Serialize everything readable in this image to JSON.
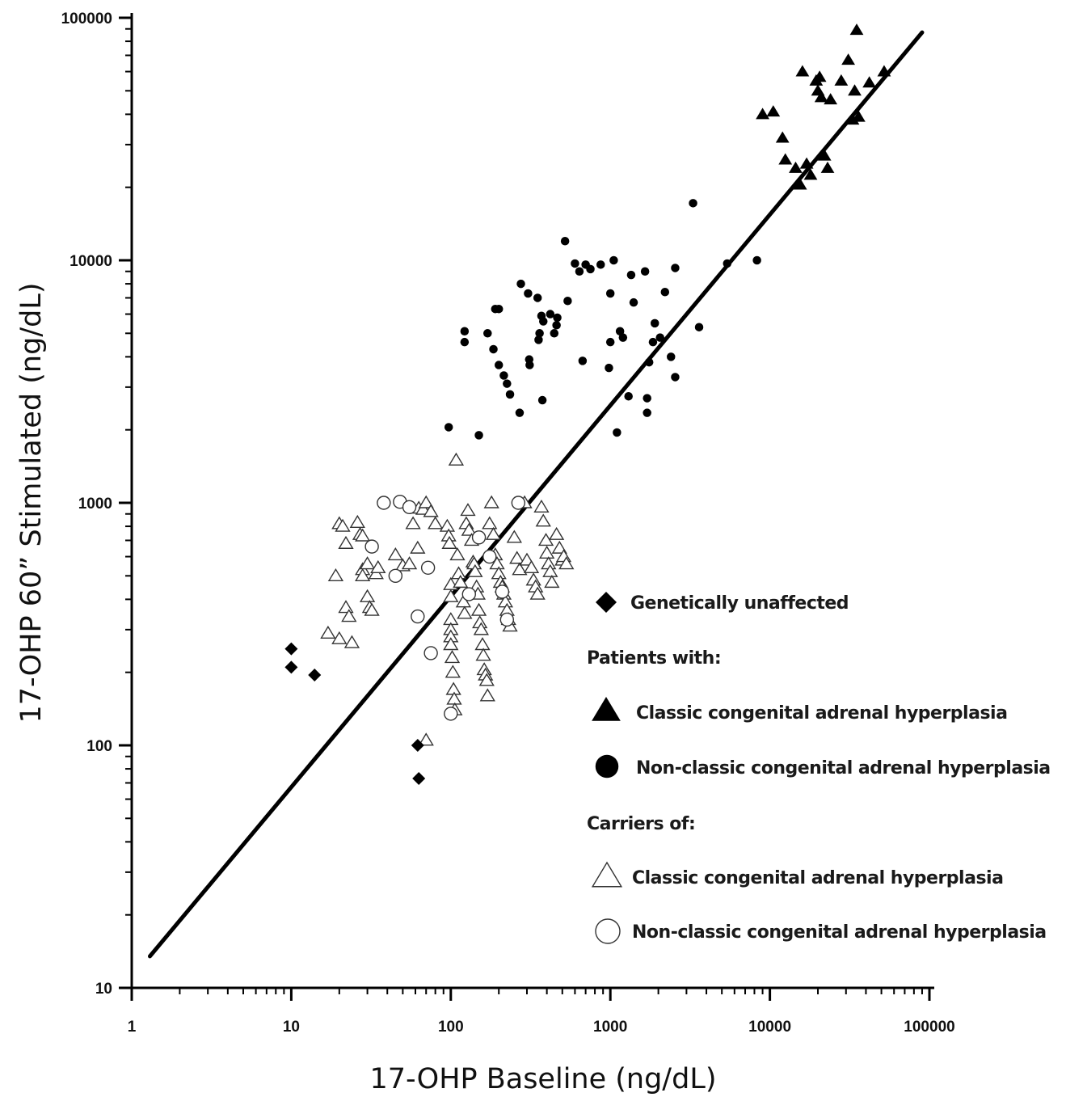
{
  "chart_data": {
    "type": "scatter",
    "xlabel": "17-OHP Baseline (ng/dL)",
    "ylabel": "17-OHP 60” Stimulated (ng/dL)",
    "xscale": "log",
    "yscale": "log",
    "xlim": [
      1,
      100000
    ],
    "ylim": [
      10,
      100000
    ],
    "x_tick_labels": [
      "1",
      "10",
      "100",
      "1000",
      "10000",
      "100000"
    ],
    "y_tick_labels": [
      "10",
      "100",
      "1000",
      "10000",
      "100000"
    ],
    "grid": false,
    "legend_position": "bottom-right",
    "reference_line": {
      "x": [
        1.3,
        90000
      ],
      "y": [
        13.5,
        87000
      ]
    },
    "legend": {
      "group1": "Patients with:",
      "group2": "Carriers of:",
      "items": [
        {
          "marker": "filled-diamond",
          "label": "Genetically unaffected"
        },
        {
          "marker": "filled-triangle",
          "label": "Classic congenital adrenal hyperplasia"
        },
        {
          "marker": "filled-circle",
          "label": "Non-classic congenital adrenal hyperplasia"
        },
        {
          "marker": "open-triangle",
          "label": "Classic congenital adrenal hyperplasia"
        },
        {
          "marker": "open-circle",
          "label": "Non-classic congenital adrenal hyperplasia"
        }
      ]
    },
    "series": [
      {
        "marker": "filled-diamond",
        "points": [
          [
            10,
            250
          ],
          [
            10,
            210
          ],
          [
            14,
            195
          ],
          [
            62,
            100
          ],
          [
            63,
            73
          ]
        ]
      },
      {
        "marker": "filled-triangle",
        "points": [
          [
            9000,
            40000
          ],
          [
            10500,
            41000
          ],
          [
            12000,
            32000
          ],
          [
            12500,
            26000
          ],
          [
            14500,
            24000
          ],
          [
            15500,
            20500
          ],
          [
            16000,
            60000
          ],
          [
            17000,
            25000
          ],
          [
            18000,
            22500
          ],
          [
            19500,
            55000
          ],
          [
            20000,
            50000
          ],
          [
            20500,
            57000
          ],
          [
            21000,
            47000
          ],
          [
            22000,
            27000
          ],
          [
            23000,
            24000
          ],
          [
            24000,
            46000
          ],
          [
            28000,
            55000
          ],
          [
            31000,
            67000
          ],
          [
            33000,
            38000
          ],
          [
            34000,
            50000
          ],
          [
            35000,
            89000
          ],
          [
            36000,
            39000
          ],
          [
            42000,
            54000
          ],
          [
            52000,
            60000
          ]
        ]
      },
      {
        "marker": "filled-circle",
        "points": [
          [
            97,
            2050
          ],
          [
            122,
            5100
          ],
          [
            122,
            4600
          ],
          [
            150,
            1900
          ],
          [
            170,
            5000
          ],
          [
            185,
            4300
          ],
          [
            190,
            6300
          ],
          [
            200,
            6300
          ],
          [
            200,
            3700
          ],
          [
            215,
            3350
          ],
          [
            225,
            3100
          ],
          [
            235,
            2800
          ],
          [
            270,
            2350
          ],
          [
            275,
            8000
          ],
          [
            305,
            7300
          ],
          [
            310,
            3900
          ],
          [
            312,
            3700
          ],
          [
            350,
            7000
          ],
          [
            355,
            4700
          ],
          [
            360,
            5000
          ],
          [
            370,
            5900
          ],
          [
            375,
            2650
          ],
          [
            380,
            5600
          ],
          [
            420,
            6000
          ],
          [
            445,
            5000
          ],
          [
            460,
            5400
          ],
          [
            465,
            5800
          ],
          [
            520,
            12000
          ],
          [
            540,
            6800
          ],
          [
            600,
            9700
          ],
          [
            640,
            9000
          ],
          [
            670,
            3850
          ],
          [
            700,
            9600
          ],
          [
            750,
            9200
          ],
          [
            870,
            9600
          ],
          [
            980,
            3600
          ],
          [
            1000,
            7300
          ],
          [
            1000,
            4600
          ],
          [
            1050,
            10000
          ],
          [
            1100,
            1950
          ],
          [
            1150,
            5100
          ],
          [
            1200,
            4800
          ],
          [
            1300,
            2750
          ],
          [
            1350,
            8700
          ],
          [
            1400,
            6700
          ],
          [
            1650,
            9000
          ],
          [
            1700,
            2700
          ],
          [
            1700,
            2350
          ],
          [
            1750,
            3800
          ],
          [
            1850,
            4600
          ],
          [
            1900,
            5500
          ],
          [
            2050,
            4800
          ],
          [
            2200,
            7400
          ],
          [
            2400,
            4000
          ],
          [
            2550,
            3300
          ],
          [
            2550,
            9300
          ],
          [
            3300,
            17200
          ],
          [
            3600,
            5300
          ],
          [
            5400,
            9700
          ],
          [
            8300,
            10000
          ]
        ]
      },
      {
        "marker": "open-triangle",
        "points": [
          [
            17,
            290
          ],
          [
            19,
            500
          ],
          [
            20,
            275
          ],
          [
            20,
            820
          ],
          [
            21,
            800
          ],
          [
            22,
            680
          ],
          [
            22,
            370
          ],
          [
            23,
            340
          ],
          [
            24,
            265
          ],
          [
            26,
            830
          ],
          [
            27,
            740
          ],
          [
            28,
            730
          ],
          [
            28,
            530
          ],
          [
            28,
            500
          ],
          [
            30,
            560
          ],
          [
            30,
            410
          ],
          [
            31,
            370
          ],
          [
            32,
            360
          ],
          [
            34,
            510
          ],
          [
            35,
            540
          ],
          [
            45,
            610
          ],
          [
            50,
            550
          ],
          [
            55,
            560
          ],
          [
            58,
            820
          ],
          [
            62,
            650
          ],
          [
            63,
            950
          ],
          [
            67,
            940
          ],
          [
            70,
            1000
          ],
          [
            75,
            920
          ],
          [
            80,
            820
          ],
          [
            95,
            800
          ],
          [
            97,
            730
          ],
          [
            98,
            680
          ],
          [
            100,
            460
          ],
          [
            100,
            410
          ],
          [
            100,
            330
          ],
          [
            100,
            300
          ],
          [
            100,
            280
          ],
          [
            100,
            260
          ],
          [
            102,
            230
          ],
          [
            103,
            200
          ],
          [
            104,
            170
          ],
          [
            105,
            155
          ],
          [
            106,
            140
          ],
          [
            108,
            1500
          ],
          [
            110,
            610
          ],
          [
            112,
            510
          ],
          [
            115,
            470
          ],
          [
            120,
            390
          ],
          [
            122,
            350
          ],
          [
            125,
            820
          ],
          [
            128,
            930
          ],
          [
            130,
            770
          ],
          [
            135,
            700
          ],
          [
            138,
            570
          ],
          [
            140,
            560
          ],
          [
            142,
            520
          ],
          [
            145,
            450
          ],
          [
            148,
            420
          ],
          [
            150,
            360
          ],
          [
            152,
            320
          ],
          [
            155,
            300
          ],
          [
            158,
            260
          ],
          [
            160,
            235
          ],
          [
            162,
            205
          ],
          [
            165,
            195
          ],
          [
            168,
            185
          ],
          [
            170,
            160
          ],
          [
            175,
            820
          ],
          [
            180,
            1000
          ],
          [
            185,
            740
          ],
          [
            190,
            610
          ],
          [
            195,
            560
          ],
          [
            200,
            510
          ],
          [
            205,
            470
          ],
          [
            210,
            450
          ],
          [
            215,
            420
          ],
          [
            220,
            390
          ],
          [
            225,
            360
          ],
          [
            230,
            330
          ],
          [
            235,
            310
          ],
          [
            250,
            720
          ],
          [
            260,
            590
          ],
          [
            270,
            530
          ],
          [
            290,
            1000
          ],
          [
            300,
            580
          ],
          [
            320,
            540
          ],
          [
            330,
            480
          ],
          [
            340,
            450
          ],
          [
            350,
            420
          ],
          [
            370,
            960
          ],
          [
            380,
            840
          ],
          [
            395,
            700
          ],
          [
            400,
            620
          ],
          [
            410,
            560
          ],
          [
            420,
            520
          ],
          [
            430,
            470
          ],
          [
            460,
            740
          ],
          [
            480,
            650
          ],
          [
            500,
            580
          ],
          [
            510,
            600
          ],
          [
            530,
            560
          ],
          [
            70,
            105
          ]
        ]
      },
      {
        "marker": "open-circle",
        "points": [
          [
            32,
            660
          ],
          [
            38,
            1000
          ],
          [
            45,
            500
          ],
          [
            48,
            1010
          ],
          [
            55,
            960
          ],
          [
            62,
            340
          ],
          [
            72,
            540
          ],
          [
            75,
            240
          ],
          [
            100,
            135
          ],
          [
            130,
            420
          ],
          [
            150,
            720
          ],
          [
            175,
            600
          ],
          [
            210,
            430
          ],
          [
            225,
            330
          ],
          [
            265,
            1000
          ]
        ]
      }
    ]
  }
}
